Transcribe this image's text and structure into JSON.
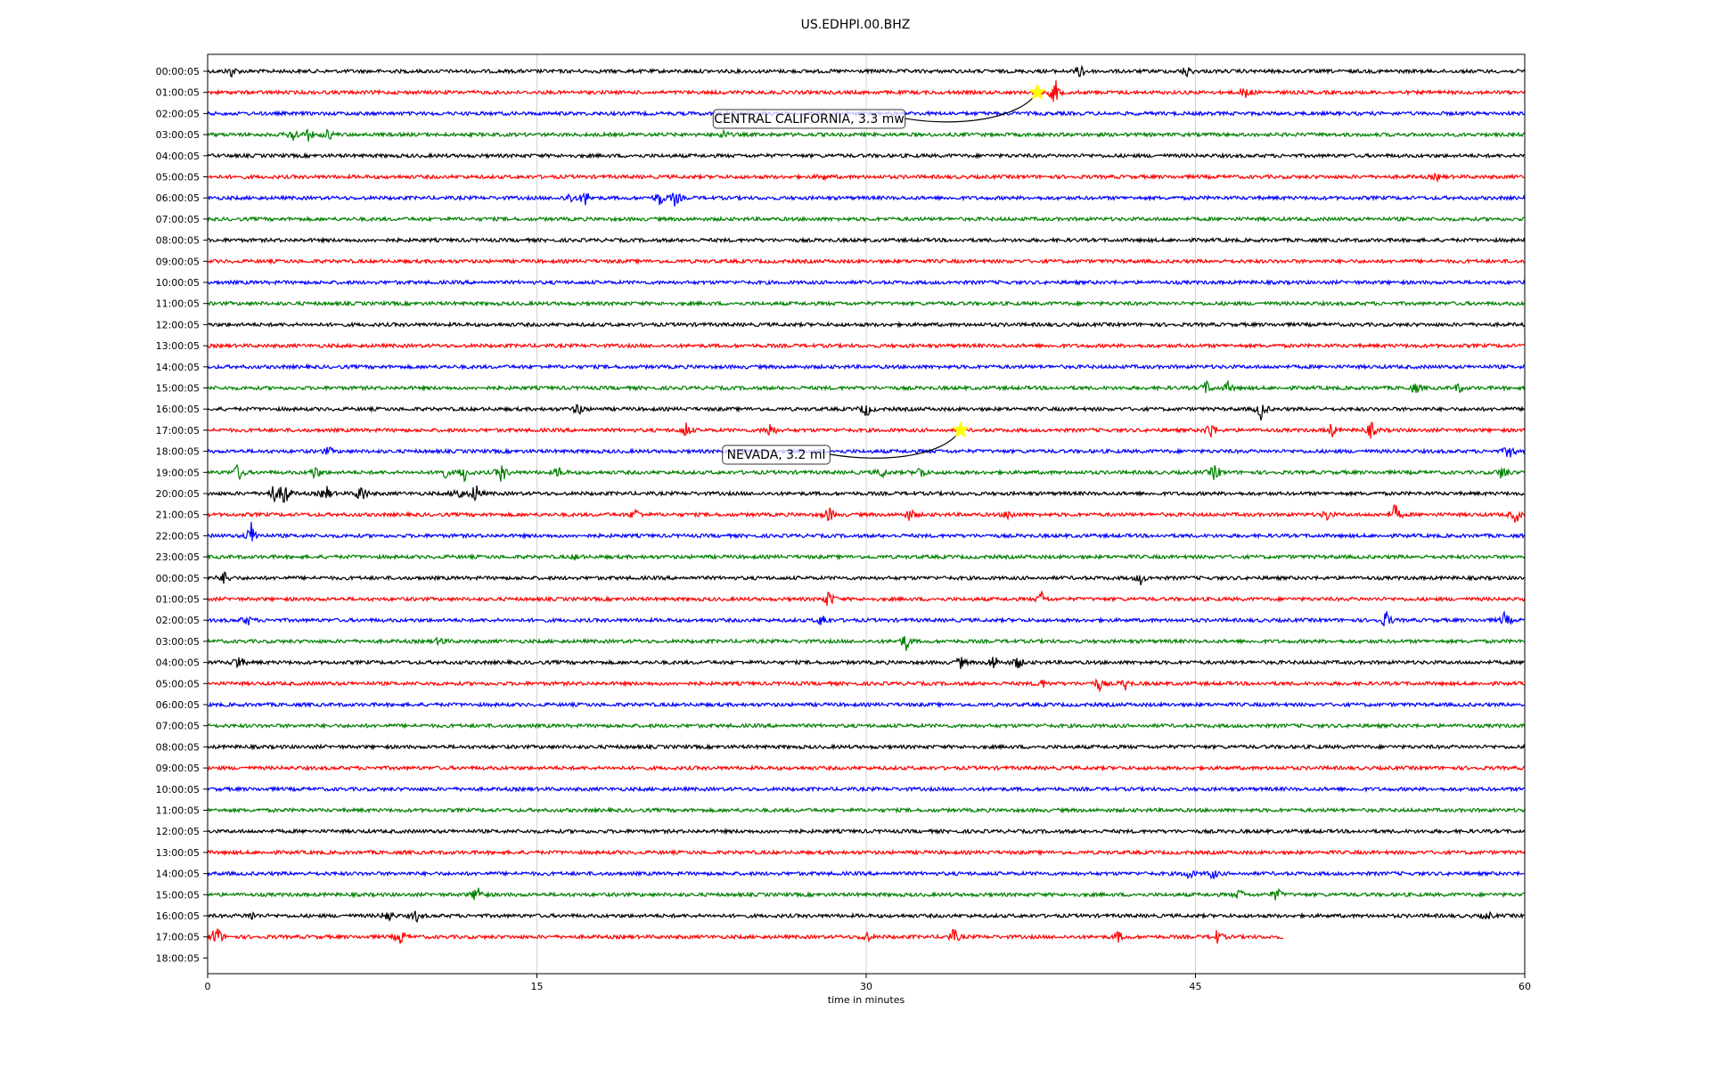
{
  "chart_data": {
    "type": "line",
    "title": "US.EDHPI.00.BHZ",
    "xlabel": "time in minutes",
    "ylabel": "",
    "xlim": [
      0,
      60
    ],
    "xticks": [
      0,
      15,
      30,
      45,
      60
    ],
    "xgrid": true,
    "trace_colors": [
      "#000000",
      "#ff0000",
      "#0000ff",
      "#008000"
    ],
    "row_labels": [
      "00:00:05",
      "01:00:05",
      "02:00:05",
      "03:00:05",
      "04:00:05",
      "05:00:05",
      "06:00:05",
      "07:00:05",
      "08:00:05",
      "09:00:05",
      "10:00:05",
      "11:00:05",
      "12:00:05",
      "13:00:05",
      "14:00:05",
      "15:00:05",
      "16:00:05",
      "17:00:05",
      "18:00:05",
      "19:00:05",
      "20:00:05",
      "21:00:05",
      "22:00:05",
      "23:00:05",
      "00:00:05",
      "01:00:05",
      "02:00:05",
      "03:00:05",
      "04:00:05",
      "05:00:05",
      "06:00:05",
      "07:00:05",
      "08:00:05",
      "09:00:05",
      "10:00:05",
      "11:00:05",
      "12:00:05",
      "13:00:05",
      "14:00:05",
      "15:00:05",
      "16:00:05",
      "17:00:05",
      "18:00:05"
    ],
    "last_trace_end_minute": 49,
    "events": [
      {
        "label": "CENTRAL CALIFORNIA, 3.3 mw",
        "row": 1,
        "minute": 37.8
      },
      {
        "label": "NEVADA, 3.2 ml",
        "row": 17,
        "minute": 34.3
      }
    ],
    "bursts": [
      {
        "row": 0,
        "t": 1.1,
        "a": 0.4
      },
      {
        "row": 0,
        "t": 39.8,
        "a": 0.6
      },
      {
        "row": 0,
        "t": 44.6,
        "a": 0.4
      },
      {
        "row": 1,
        "t": 38.6,
        "a": 1.0
      },
      {
        "row": 1,
        "t": 47.3,
        "a": 0.5
      },
      {
        "row": 3,
        "t": 3.9,
        "a": 0.5
      },
      {
        "row": 3,
        "t": 4.6,
        "a": 0.4
      },
      {
        "row": 3,
        "t": 5.5,
        "a": 0.4
      },
      {
        "row": 3,
        "t": 23.5,
        "a": 0.3
      },
      {
        "row": 5,
        "t": 28.0,
        "a": 0.2
      },
      {
        "row": 5,
        "t": 56.0,
        "a": 0.2
      },
      {
        "row": 6,
        "t": 16.5,
        "a": 0.4
      },
      {
        "row": 6,
        "t": 17.2,
        "a": 0.6
      },
      {
        "row": 6,
        "t": 20.6,
        "a": 0.6
      },
      {
        "row": 6,
        "t": 21.3,
        "a": 0.6
      },
      {
        "row": 15,
        "t": 45.5,
        "a": 0.5
      },
      {
        "row": 15,
        "t": 46.5,
        "a": 0.4
      },
      {
        "row": 15,
        "t": 55.0,
        "a": 0.4
      },
      {
        "row": 15,
        "t": 57.0,
        "a": 0.3
      },
      {
        "row": 16,
        "t": 16.9,
        "a": 0.5
      },
      {
        "row": 16,
        "t": 30.0,
        "a": 0.6
      },
      {
        "row": 16,
        "t": 48.0,
        "a": 0.8
      },
      {
        "row": 17,
        "t": 21.8,
        "a": 0.6
      },
      {
        "row": 17,
        "t": 25.6,
        "a": 0.6
      },
      {
        "row": 17,
        "t": 45.7,
        "a": 0.7
      },
      {
        "row": 17,
        "t": 51.2,
        "a": 0.5
      },
      {
        "row": 17,
        "t": 53.0,
        "a": 0.6
      },
      {
        "row": 18,
        "t": 5.5,
        "a": 0.3
      },
      {
        "row": 18,
        "t": 59.3,
        "a": 0.6
      },
      {
        "row": 19,
        "t": 1.4,
        "a": 0.7
      },
      {
        "row": 19,
        "t": 4.9,
        "a": 0.5
      },
      {
        "row": 19,
        "t": 10.7,
        "a": 0.7
      },
      {
        "row": 19,
        "t": 11.7,
        "a": 0.6
      },
      {
        "row": 19,
        "t": 13.4,
        "a": 0.8
      },
      {
        "row": 19,
        "t": 16.0,
        "a": 0.4
      },
      {
        "row": 19,
        "t": 30.7,
        "a": 0.4
      },
      {
        "row": 19,
        "t": 32.5,
        "a": 0.5
      },
      {
        "row": 19,
        "t": 45.9,
        "a": 0.7
      },
      {
        "row": 19,
        "t": 59.0,
        "a": 0.6
      },
      {
        "row": 20,
        "t": 3.0,
        "a": 0.7
      },
      {
        "row": 20,
        "t": 3.5,
        "a": 1.2
      },
      {
        "row": 20,
        "t": 5.4,
        "a": 0.6
      },
      {
        "row": 20,
        "t": 7.0,
        "a": 0.8
      },
      {
        "row": 20,
        "t": 11.4,
        "a": 0.6
      },
      {
        "row": 20,
        "t": 12.2,
        "a": 0.8
      },
      {
        "row": 21,
        "t": 19.5,
        "a": 0.4
      },
      {
        "row": 21,
        "t": 28.3,
        "a": 0.6
      },
      {
        "row": 21,
        "t": 32.0,
        "a": 0.5
      },
      {
        "row": 21,
        "t": 36.5,
        "a": 0.4
      },
      {
        "row": 21,
        "t": 51.0,
        "a": 0.4
      },
      {
        "row": 21,
        "t": 54.1,
        "a": 0.8
      },
      {
        "row": 21,
        "t": 59.6,
        "a": 0.6
      },
      {
        "row": 22,
        "t": 2.0,
        "a": 1.0
      },
      {
        "row": 23,
        "t": 16.8,
        "a": 0.2
      },
      {
        "row": 24,
        "t": 0.8,
        "a": 0.5
      },
      {
        "row": 24,
        "t": 42.5,
        "a": 0.4
      },
      {
        "row": 25,
        "t": 28.3,
        "a": 0.7
      },
      {
        "row": 25,
        "t": 38.0,
        "a": 0.5
      },
      {
        "row": 26,
        "t": 1.8,
        "a": 0.4
      },
      {
        "row": 26,
        "t": 28.0,
        "a": 0.5
      },
      {
        "row": 26,
        "t": 53.7,
        "a": 0.7
      },
      {
        "row": 26,
        "t": 59.1,
        "a": 0.6
      },
      {
        "row": 27,
        "t": 10.6,
        "a": 0.4
      },
      {
        "row": 27,
        "t": 31.8,
        "a": 0.7
      },
      {
        "row": 28,
        "t": 1.4,
        "a": 0.6
      },
      {
        "row": 28,
        "t": 34.3,
        "a": 0.4
      },
      {
        "row": 28,
        "t": 35.8,
        "a": 0.6
      },
      {
        "row": 28,
        "t": 36.9,
        "a": 0.5
      },
      {
        "row": 29,
        "t": 38.0,
        "a": 0.3
      },
      {
        "row": 29,
        "t": 40.6,
        "a": 0.5
      },
      {
        "row": 29,
        "t": 41.8,
        "a": 0.4
      },
      {
        "row": 38,
        "t": 44.7,
        "a": 0.4
      },
      {
        "row": 38,
        "t": 45.8,
        "a": 0.4
      },
      {
        "row": 39,
        "t": 12.3,
        "a": 0.8
      },
      {
        "row": 39,
        "t": 47.0,
        "a": 0.4
      },
      {
        "row": 39,
        "t": 48.7,
        "a": 0.5
      },
      {
        "row": 40,
        "t": 2.0,
        "a": 0.3
      },
      {
        "row": 40,
        "t": 8.2,
        "a": 0.5
      },
      {
        "row": 40,
        "t": 9.5,
        "a": 0.4
      },
      {
        "row": 40,
        "t": 58.3,
        "a": 0.3
      },
      {
        "row": 41,
        "t": 0.4,
        "a": 1.0
      },
      {
        "row": 41,
        "t": 8.8,
        "a": 0.6
      },
      {
        "row": 41,
        "t": 30.0,
        "a": 0.4
      },
      {
        "row": 41,
        "t": 34.0,
        "a": 0.6
      },
      {
        "row": 41,
        "t": 41.5,
        "a": 0.4
      },
      {
        "row": 41,
        "t": 46.0,
        "a": 0.5
      }
    ]
  }
}
